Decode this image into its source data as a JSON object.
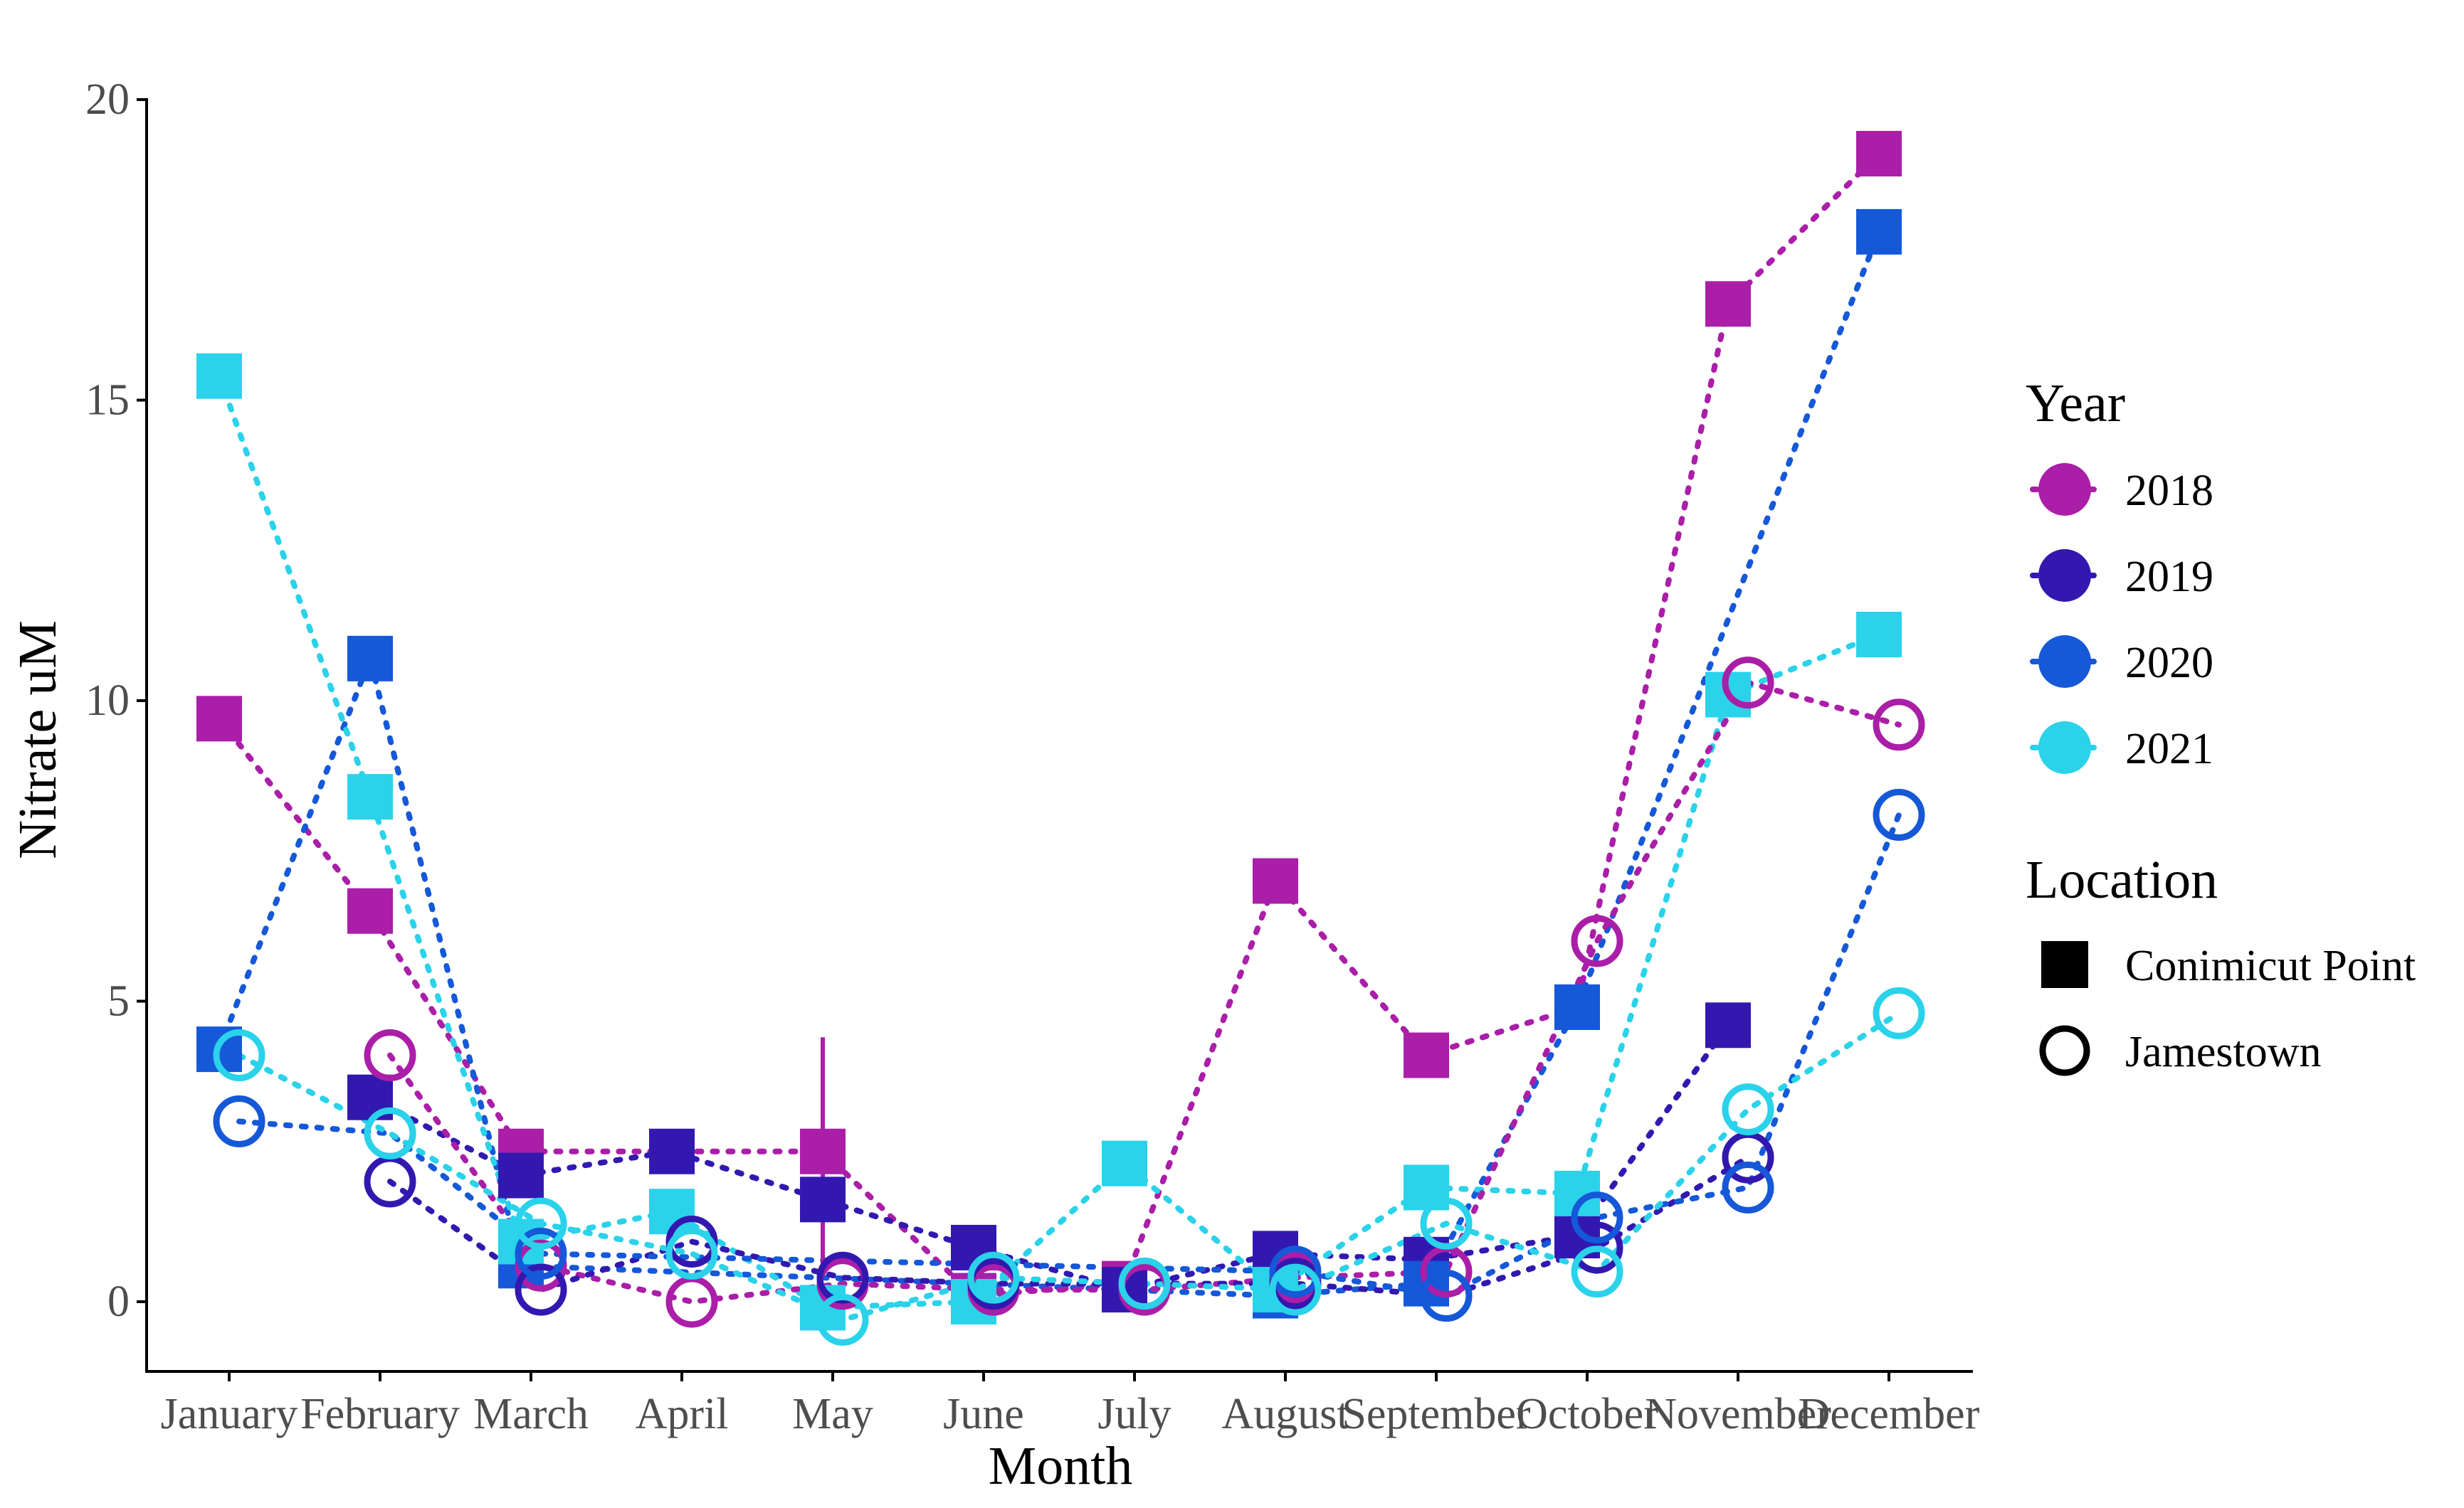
{
  "chart_data": {
    "type": "scatter",
    "title": "",
    "xlabel": "Month",
    "ylabel": "Nitrate uM",
    "categories": [
      "January",
      "February",
      "March",
      "April",
      "May",
      "June",
      "July",
      "August",
      "September",
      "October",
      "November",
      "December"
    ],
    "ylim": [
      -1.2,
      20
    ],
    "yticks": [
      0,
      5,
      10,
      15,
      20
    ],
    "grid": false,
    "legend": {
      "placement": "right",
      "year_title": "Year",
      "location_title": "Location",
      "years": [
        {
          "label": "2018",
          "color": "#AA1EA8"
        },
        {
          "label": "2019",
          "color": "#3318B0"
        },
        {
          "label": "2020",
          "color": "#1558D8"
        },
        {
          "label": "2021",
          "color": "#2AD2EA"
        }
      ],
      "locations": [
        {
          "label": "Conimicut Point",
          "shape": "square"
        },
        {
          "label": "Jamestown",
          "shape": "open-circle"
        }
      ]
    },
    "series": [
      {
        "year": "2018",
        "location": "Conimicut Point",
        "values": [
          9.7,
          6.5,
          2.5,
          null,
          2.5,
          0.1,
          0.3,
          7.0,
          4.1,
          4.9,
          16.6,
          19.1
        ]
      },
      {
        "year": "2019",
        "location": "Conimicut Point",
        "values": [
          null,
          3.4,
          2.1,
          2.5,
          1.7,
          0.9,
          0.2,
          0.8,
          0.7,
          1.1,
          4.6,
          null
        ]
      },
      {
        "year": "2020",
        "location": "Conimicut Point",
        "values": [
          4.2,
          10.7,
          0.6,
          null,
          null,
          null,
          null,
          0.1,
          0.3,
          4.9,
          null,
          17.8
        ]
      },
      {
        "year": "2021",
        "location": "Conimicut Point",
        "values": [
          15.4,
          8.4,
          1.0,
          1.5,
          -0.1,
          0.0,
          2.3,
          0.2,
          1.9,
          1.8,
          10.1,
          11.1
        ]
      },
      {
        "year": "2018",
        "location": "Jamestown",
        "values": [
          null,
          4.1,
          0.6,
          0.0,
          0.3,
          0.2,
          0.2,
          0.4,
          0.5,
          6.0,
          10.3,
          9.6
        ]
      },
      {
        "year": "2019",
        "location": "Jamestown",
        "values": [
          null,
          2.0,
          0.2,
          1.0,
          0.4,
          0.3,
          0.3,
          0.3,
          0.1,
          0.9,
          2.4,
          null
        ]
      },
      {
        "year": "2020",
        "location": "Jamestown",
        "values": [
          3.0,
          2.8,
          0.8,
          null,
          null,
          null,
          null,
          0.5,
          0.1,
          1.4,
          1.9,
          8.1
        ]
      },
      {
        "year": "2021",
        "location": "Jamestown",
        "values": [
          4.1,
          2.8,
          1.3,
          0.8,
          -0.3,
          0.4,
          0.3,
          0.2,
          1.3,
          0.5,
          3.2,
          4.8
        ]
      }
    ],
    "error_bars": [
      {
        "year": "2018",
        "location": "Conimicut Point",
        "month": "May",
        "low": 0.5,
        "high": 4.4
      }
    ]
  }
}
